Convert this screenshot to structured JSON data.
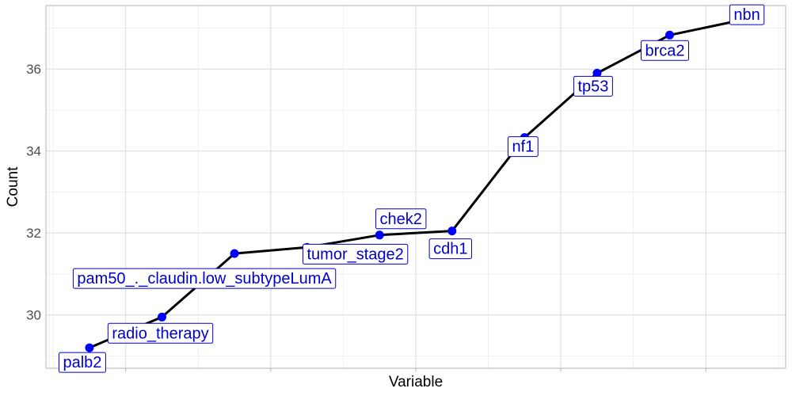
{
  "chart_data": {
    "type": "line",
    "xlabel": "Variable",
    "ylabel": "Count",
    "ylim": [
      28.7,
      37.55
    ],
    "yticks": [
      30,
      32,
      34,
      36
    ],
    "grid": true,
    "line_color": "#000000",
    "point_color": "#0000ff",
    "label_color": "#0000cc",
    "points": [
      {
        "label": "palb2",
        "value": 29.2
      },
      {
        "label": "radio_therapy",
        "value": 29.95
      },
      {
        "label": "pam50_._claudin.low_subtypeLumA",
        "value": 31.5
      },
      {
        "label": "tumor_stage2",
        "value": 31.65
      },
      {
        "label": "chek2",
        "value": 31.95
      },
      {
        "label": "cdh1",
        "value": 32.05
      },
      {
        "label": "nf1",
        "value": 34.33
      },
      {
        "label": "tp53",
        "value": 35.9
      },
      {
        "label": "brca2",
        "value": 36.83
      },
      {
        "label": "nbn",
        "value": 37.2
      }
    ]
  }
}
